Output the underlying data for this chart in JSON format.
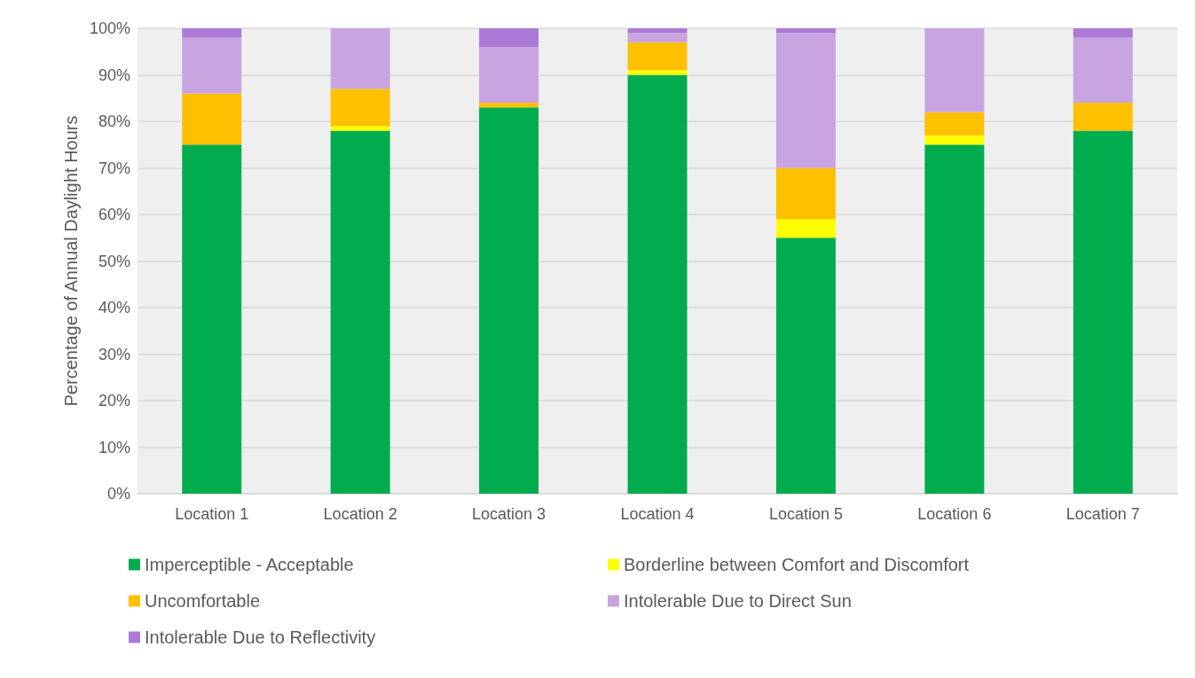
{
  "chart_data": {
    "type": "bar",
    "stacked": true,
    "ylabel": "Percentage of Annual Daylight Hours",
    "categories": [
      "Location 1",
      "Location 2",
      "Location 3",
      "Location 4",
      "Location 5",
      "Location 6",
      "Location 7"
    ],
    "series": [
      {
        "name": "Imperceptible - Acceptable",
        "color": "#00ac4e",
        "values": [
          75,
          78,
          83,
          90,
          55,
          75,
          78
        ]
      },
      {
        "name": "Borderline between Comfort and Discomfort",
        "color": "#ffff00",
        "values": [
          0,
          1,
          0,
          1,
          4,
          2,
          0
        ]
      },
      {
        "name": "Uncomfortable",
        "color": "#ffc000",
        "values": [
          11,
          8,
          1,
          6,
          11,
          5,
          6
        ]
      },
      {
        "name": "Intolerable Due to Direct Sun",
        "color": "#c8a5e1",
        "values": [
          12,
          13,
          12,
          2,
          29,
          18,
          14
        ]
      },
      {
        "name": "Intolerable Due to Reflectivity",
        "color": "#ac7ad6",
        "values": [
          2,
          0,
          4,
          1,
          1,
          0,
          2
        ]
      }
    ],
    "ylim": [
      0,
      100
    ],
    "yticks": [
      {
        "value": 0,
        "label": "0%"
      },
      {
        "value": 10,
        "label": "10%"
      },
      {
        "value": 20,
        "label": "20%"
      },
      {
        "value": 30,
        "label": "30%"
      },
      {
        "value": 40,
        "label": "40%"
      },
      {
        "value": 50,
        "label": "50%"
      },
      {
        "value": 60,
        "label": "60%"
      },
      {
        "value": 70,
        "label": "70%"
      },
      {
        "value": 80,
        "label": "80%"
      },
      {
        "value": 90,
        "label": "90%"
      },
      {
        "value": 100,
        "label": "100%"
      }
    ],
    "grid": "y",
    "legend": "bottom"
  }
}
